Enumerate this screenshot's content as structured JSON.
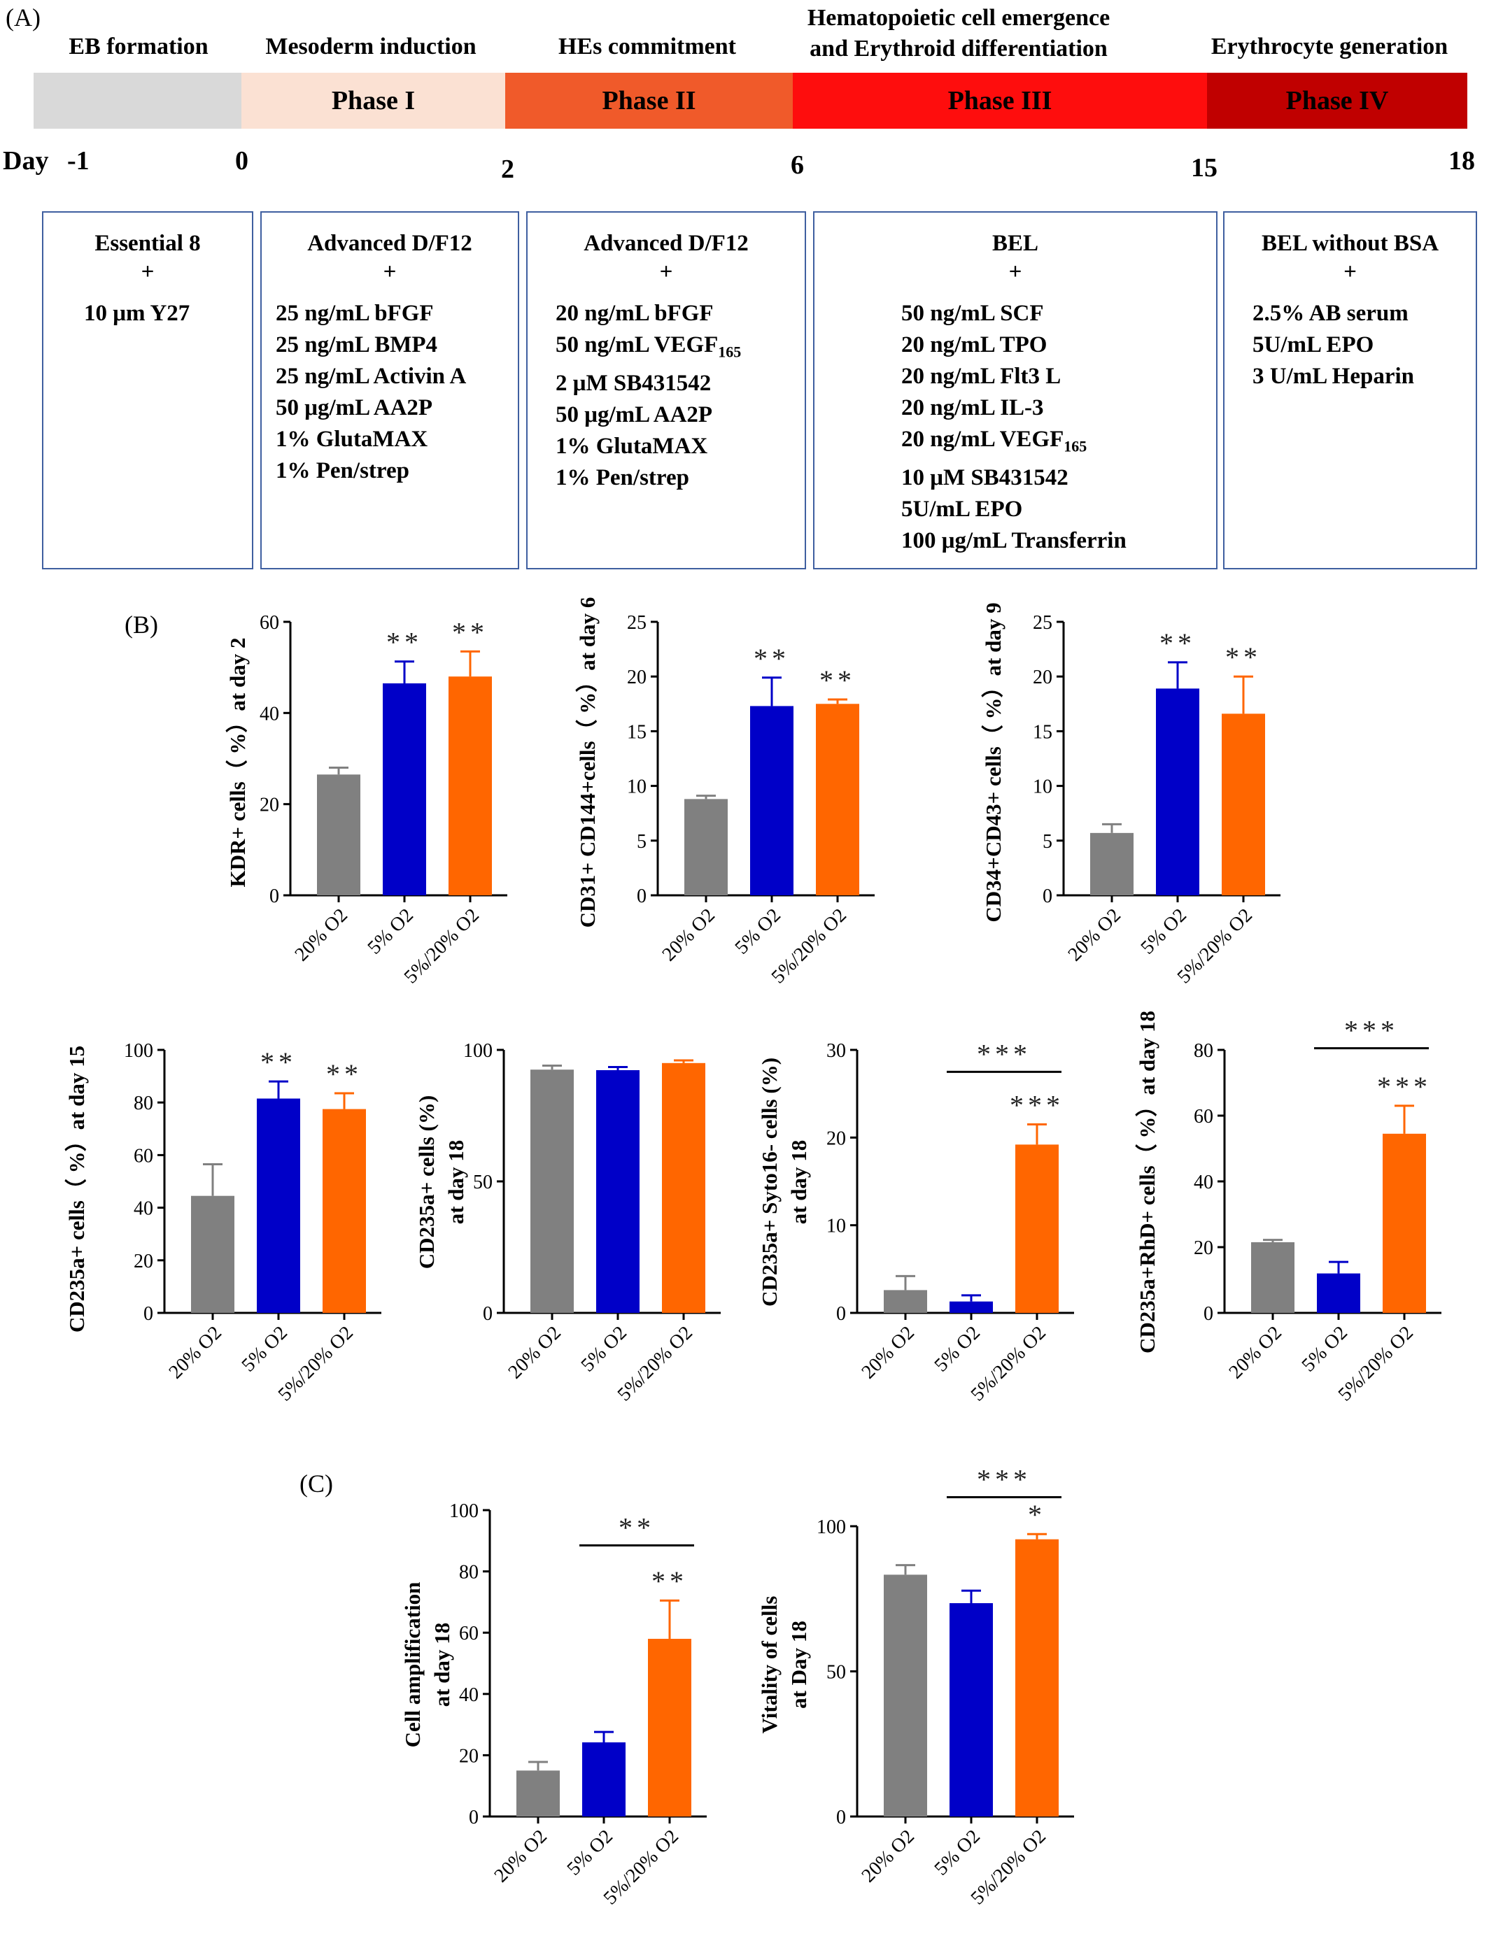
{
  "panels": {
    "a": "(A)",
    "b": "(B)",
    "c": "(C)"
  },
  "timeline": {
    "stage_titles": [
      {
        "line1": "EB formation",
        "line2": ""
      },
      {
        "line1": "Mesoderm induction",
        "line2": ""
      },
      {
        "line1": "HEs commitment",
        "line2": ""
      },
      {
        "line1": "Hematopoietic cell emergence",
        "line2": "and Erythroid differentiation"
      },
      {
        "line1": "Erythrocyte generation",
        "line2": ""
      }
    ],
    "phases": [
      {
        "label": "",
        "color": "#d9d9d9"
      },
      {
        "label": "Phase I",
        "color": "#fbe1d3"
      },
      {
        "label": "Phase II",
        "color": "#f05a2a"
      },
      {
        "label": "Phase III",
        "color": "#fe0d0d"
      },
      {
        "label": "Phase IV",
        "color": "#c00000"
      }
    ],
    "day_word": "Day",
    "days": [
      "-1",
      "0",
      "2",
      "6",
      "15",
      "18"
    ]
  },
  "media": [
    {
      "base": "Essential 8",
      "plus": "+",
      "items": [
        "10 μm Y27"
      ]
    },
    {
      "base": "Advanced D/F12",
      "plus": "+",
      "items": [
        "25 ng/mL bFGF",
        "25 ng/mL BMP4",
        "25 ng/mL Activin A",
        "50 μg/mL AA2P",
        "1% GlutaMAX",
        "1% Pen/strep"
      ]
    },
    {
      "base": "Advanced D/F12",
      "plus": "+",
      "items": [
        "20 ng/mL bFGF",
        "50 ng/mL VEGF165",
        "2 μM SB431542",
        "50 μg/mL AA2P",
        "1% GlutaMAX",
        "1% Pen/strep"
      ]
    },
    {
      "base": "BEL",
      "plus": "+",
      "items": [
        "50 ng/mL SCF",
        "20 ng/mL TPO",
        "20 ng/mL Flt3 L",
        "20 ng/mL IL-3",
        "20 ng/mL VEGF165",
        "10 μM SB431542",
        "5U/mL EPO",
        "100 μg/mL Transferrin"
      ]
    },
    {
      "base": "BEL without BSA",
      "plus": "+",
      "items": [
        "2.5% AB serum",
        "5U/mL EPO",
        "3 U/mL Heparin"
      ]
    }
  ],
  "colors": {
    "g20": "#808080",
    "g5": "#0000c8",
    "g5_20": "#ff6600"
  },
  "chart_data": [
    {
      "type": "bar",
      "panel": "B",
      "ylabel": "KDR+ cells（ %）at day 2",
      "ylim": [
        0,
        60
      ],
      "yticks": [
        0,
        20,
        40,
        60
      ],
      "categories": [
        "20% O2",
        "5% O2",
        "5%/20% O2"
      ],
      "values": [
        26.5,
        46.5,
        48
      ],
      "errors": [
        1.5,
        4.8,
        5.5
      ],
      "stars": [
        "",
        "**",
        "**"
      ],
      "bracket": null
    },
    {
      "type": "bar",
      "panel": "B",
      "ylabel": "CD31+ CD144+cells（ %）at day 6",
      "ylim": [
        0,
        25
      ],
      "yticks": [
        0,
        5,
        10,
        15,
        20,
        25
      ],
      "categories": [
        "20% O2",
        "5% O2",
        "5%/20% O2"
      ],
      "values": [
        8.8,
        17.3,
        17.5
      ],
      "errors": [
        0.3,
        2.6,
        0.4
      ],
      "stars": [
        "",
        "**",
        "**"
      ],
      "bracket": null
    },
    {
      "type": "bar",
      "panel": "B",
      "ylabel": "CD34+CD43+ cells（ %）at day 9",
      "ylim": [
        0,
        25
      ],
      "yticks": [
        0,
        5,
        10,
        15,
        20,
        25
      ],
      "categories": [
        "20% O2",
        "5% O2",
        "5%/20% O2"
      ],
      "values": [
        5.7,
        18.9,
        16.6
      ],
      "errors": [
        0.8,
        2.4,
        3.4
      ],
      "stars": [
        "",
        "**",
        "**"
      ],
      "bracket": null
    },
    {
      "type": "bar",
      "panel": "B",
      "ylabel": "CD235a+ cells（ %）at day 15",
      "ylim": [
        0,
        100
      ],
      "yticks": [
        0,
        20,
        40,
        60,
        80,
        100
      ],
      "categories": [
        "20% O2",
        "5% O2",
        "5%/20% O2"
      ],
      "values": [
        44.5,
        81.5,
        77.5
      ],
      "errors": [
        12,
        6.5,
        6
      ],
      "stars": [
        "",
        "**",
        "**"
      ],
      "bracket": null
    },
    {
      "type": "bar",
      "panel": "B",
      "ylabel": "CD235a+ cells (%) at day 18",
      "ylim": [
        0,
        100
      ],
      "yticks": [
        0,
        50,
        100
      ],
      "categories": [
        "20% O2",
        "5% O2",
        "5%/20% O2"
      ],
      "values": [
        92.5,
        92.3,
        95
      ],
      "errors": [
        1.5,
        1.2,
        1
      ],
      "stars": [
        "",
        "",
        ""
      ],
      "bracket": null
    },
    {
      "type": "bar",
      "panel": "B",
      "ylabel": "CD235a+ Syto16- cells (%) at day 18",
      "ylim": [
        0,
        30
      ],
      "yticks": [
        0,
        10,
        20,
        30
      ],
      "categories": [
        "20% O2",
        "5% O2",
        "5%/20% O2"
      ],
      "values": [
        2.6,
        1.3,
        19.2
      ],
      "errors": [
        1.6,
        0.7,
        2.3
      ],
      "stars": [
        "",
        "",
        "***"
      ],
      "bracket": {
        "from": 1,
        "to": 2,
        "label": "***",
        "y": 27.5
      }
    },
    {
      "type": "bar",
      "panel": "B",
      "ylabel": "CD235a+RhD+ cells（ %）at day 18",
      "ylim": [
        0,
        80
      ],
      "yticks": [
        0,
        20,
        40,
        60,
        80
      ],
      "categories": [
        "20% O2",
        "5% O2",
        "5%/20% O2"
      ],
      "values": [
        21.5,
        12,
        54.5
      ],
      "errors": [
        0.7,
        3.5,
        8.5
      ],
      "stars": [
        "",
        "",
        "***"
      ],
      "bracket": {
        "from": 1,
        "to": 2,
        "label": "***",
        "y": 80.5
      }
    },
    {
      "type": "bar",
      "panel": "C",
      "ylabel": "Cell amplification at day 18",
      "ylim": [
        0,
        100
      ],
      "yticks": [
        0,
        20,
        40,
        60,
        80,
        100
      ],
      "categories": [
        "20% O2",
        "5% O2",
        "5%/20% O2"
      ],
      "values": [
        15,
        24.2,
        58
      ],
      "errors": [
        2.8,
        3.4,
        12.5
      ],
      "stars": [
        "",
        "",
        "**"
      ],
      "bracket": {
        "from": 1,
        "to": 2,
        "label": "**",
        "y": 88.5
      }
    },
    {
      "type": "bar",
      "panel": "C",
      "ylabel": "Vitality of cells at Day 18",
      "ylim": [
        0,
        100
      ],
      "yticks": [
        0,
        50,
        100
      ],
      "categories": [
        "20% O2",
        "5% O2",
        "5%/20% O2"
      ],
      "values": [
        83.3,
        73.5,
        95.5
      ],
      "errors": [
        3.3,
        4.3,
        1.8
      ],
      "stars": [
        "",
        "",
        "*"
      ],
      "bracket": {
        "from": 1,
        "to": 2,
        "label": "***",
        "y": 110
      }
    }
  ]
}
